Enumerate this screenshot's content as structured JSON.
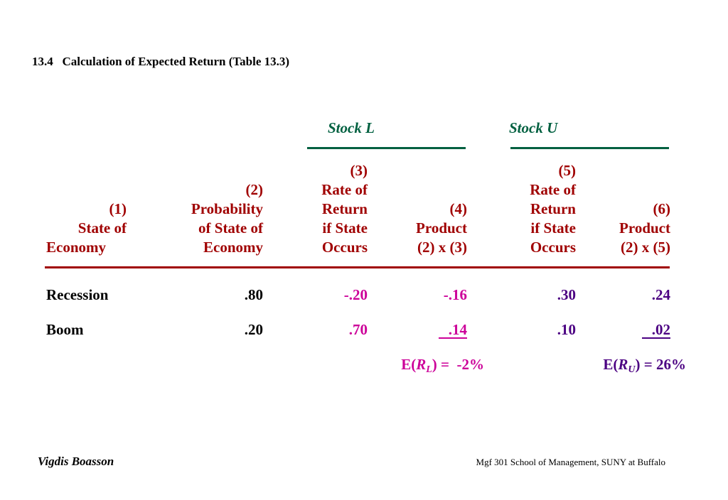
{
  "header": {
    "title": "13.4   Calculation of Expected Return (Table 13.3)"
  },
  "groups": [
    "Stock L",
    "Stock U"
  ],
  "table": {
    "columns": [
      [
        "(1)",
        "State of",
        "Economy"
      ],
      [
        "(2)",
        "Probability",
        "of State of",
        "Economy"
      ],
      [
        "(3)",
        "Rate of",
        "Return",
        "if State",
        "Occurs"
      ],
      [
        "(4)",
        "Product",
        "(2) x (3)"
      ],
      [
        "(5)",
        "Rate of",
        "Return",
        "if State",
        "Occurs"
      ],
      [
        "(6)",
        "Product",
        "(2) x (5)"
      ]
    ],
    "rows": [
      [
        "Recession",
        ".80",
        "-.20",
        "-.16",
        ".30",
        ".24"
      ],
      [
        "Boom",
        ".20",
        ".70",
        ".14",
        ".10",
        ".02"
      ]
    ]
  },
  "expected": [
    {
      "prefix": "E(",
      "var": "R",
      "sub": "L",
      "suffix": ") =  -2%"
    },
    {
      "prefix": "E(",
      "var": "R",
      "sub": "U",
      "suffix": ") = 26%"
    }
  ],
  "footer": {
    "author": "Vigdis Boasson",
    "course": "Mgf 301 School of Management, SUNY at Buffalo"
  }
}
